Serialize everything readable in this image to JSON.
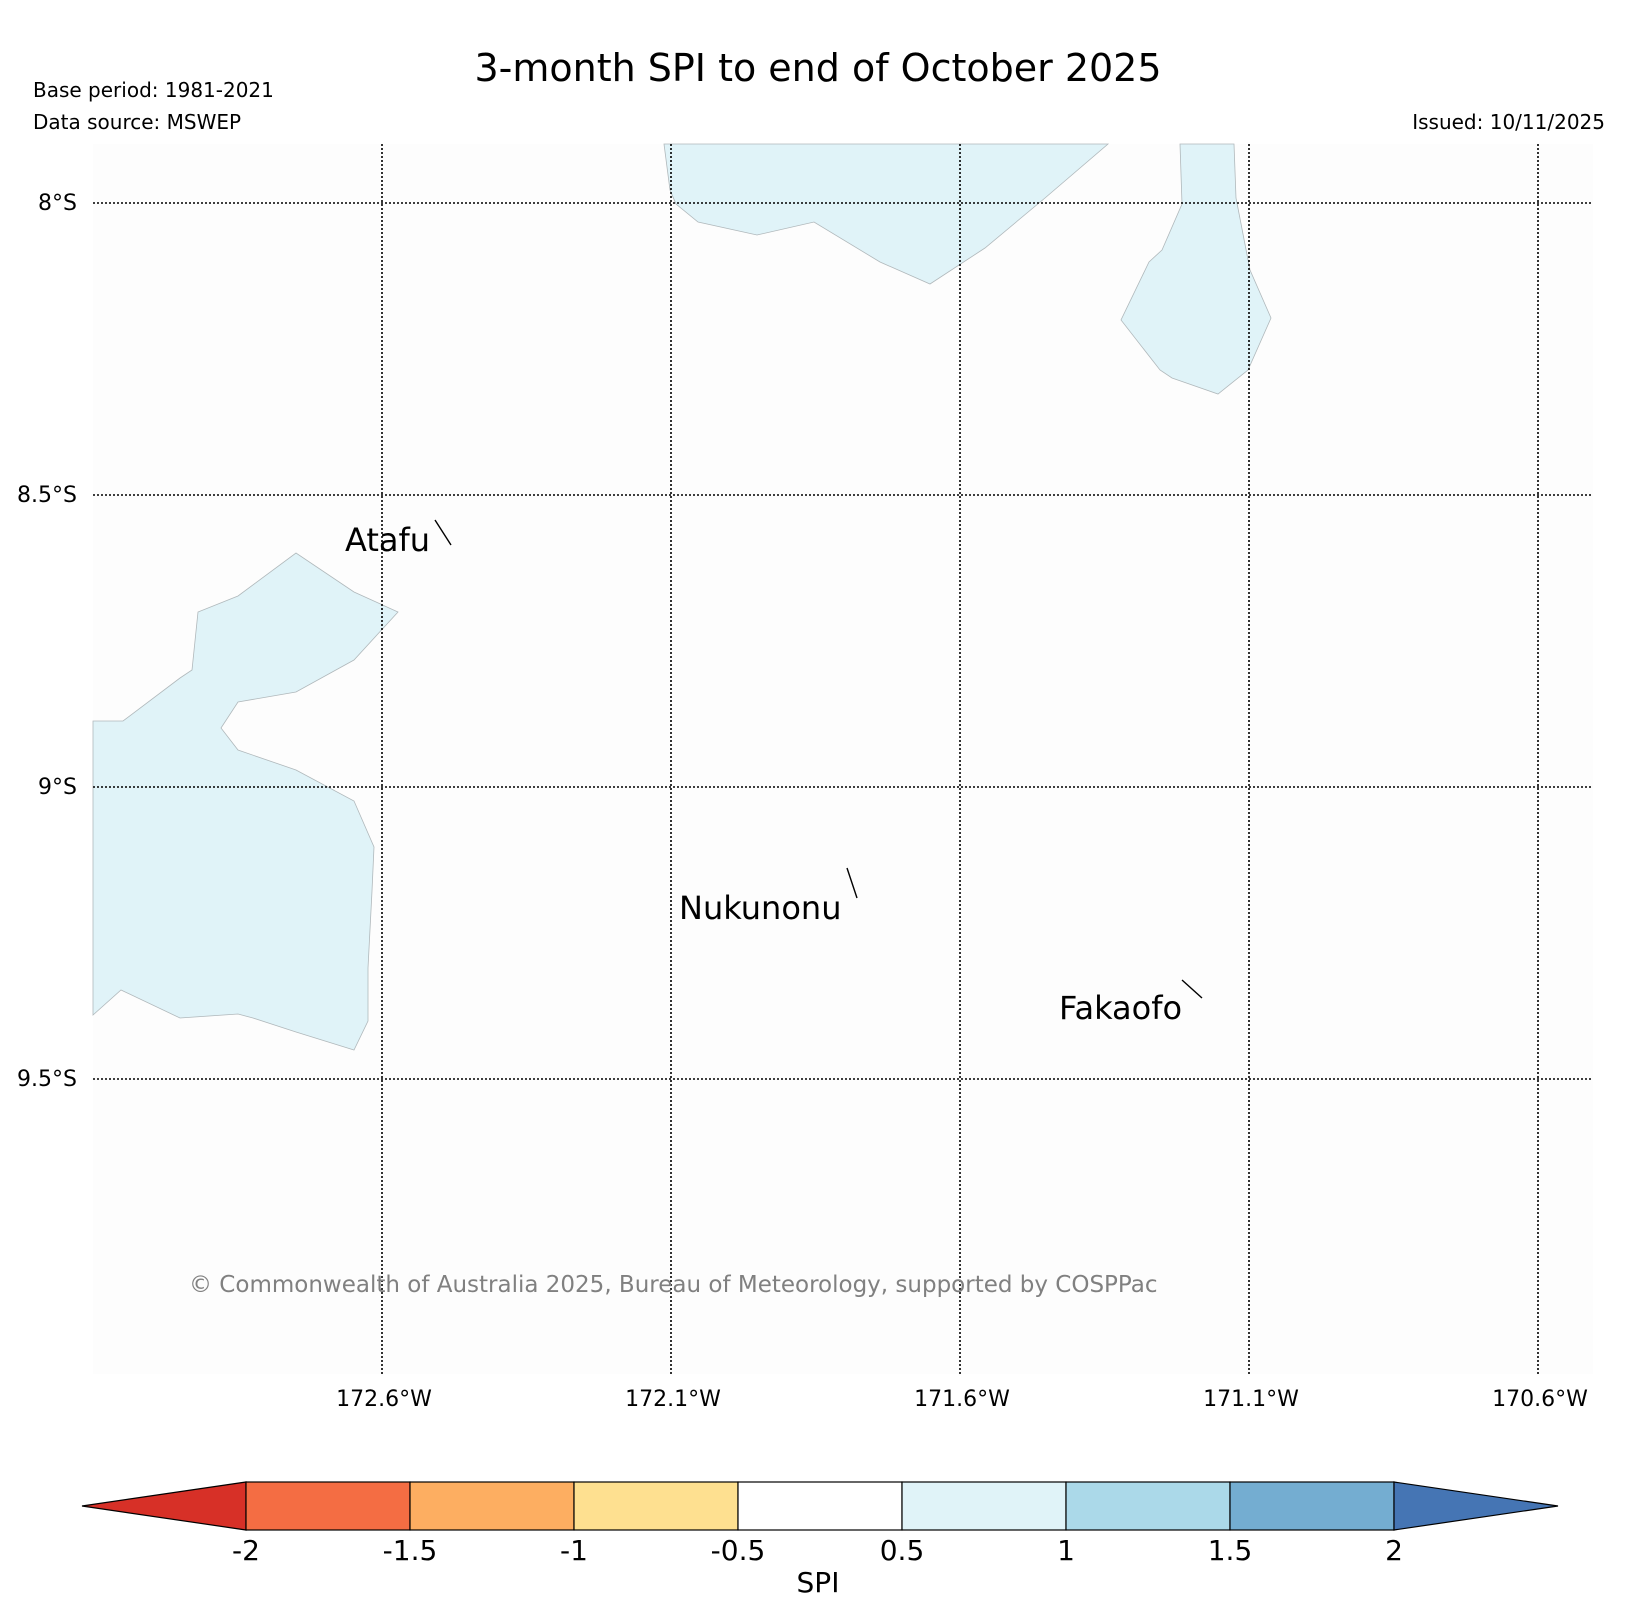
{
  "header": {
    "title": "3-month SPI to end of October 2025",
    "base_period": "Base period: 1981-2021",
    "data_source": "Data source: MSWEP",
    "issued": "Issued: 10/11/2025"
  },
  "map": {
    "lat_labels": [
      "8°S",
      "8.5°S",
      "9°S",
      "9.5°S"
    ],
    "lon_labels": [
      "172.6°W",
      "172.1°W",
      "171.6°W",
      "171.1°W",
      "170.6°W"
    ],
    "places": [
      "Atafu",
      "Nukunonu",
      "Fakaofo"
    ],
    "copyright": "© Commonwealth of Australia 2025, Bureau of Meteorology, supported by COSPPac",
    "shaded_category_color": "#e0f3f8"
  },
  "colorbar": {
    "label": "SPI",
    "ticks": [
      "-2",
      "-1.5",
      "-1",
      "-0.5",
      "0.5",
      "1",
      "1.5",
      "2"
    ],
    "low_extend_color": "#d73027",
    "high_extend_color": "#4575b4",
    "colors": [
      "#f46d43",
      "#fdae61",
      "#fee090",
      "#ffffff",
      "#e0f3f8",
      "#abd9e9",
      "#74add1"
    ]
  }
}
